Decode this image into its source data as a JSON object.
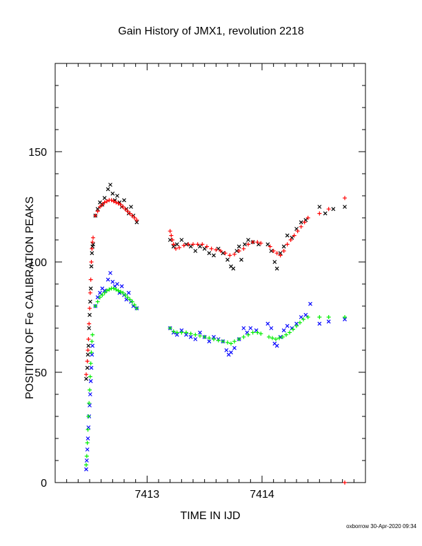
{
  "chart_data": {
    "type": "scatter",
    "title": "Gain History of JMX1, revolution 2218",
    "xlabel": "TIME IN IJD",
    "ylabel": "POSITION OF Fe CALIBRATION PEAKS",
    "footer": "oxborrow 30-Apr-2020 09:34",
    "xlim": [
      7412.2,
      7414.9
    ],
    "ylim": [
      0,
      190
    ],
    "x_ticks": [
      7413,
      7414
    ],
    "y_ticks": [
      0,
      50,
      100,
      150
    ],
    "grid": false,
    "series": [
      {
        "marker": "x",
        "color": "#000000",
        "points": [
          [
            7412.47,
            47
          ],
          [
            7412.48,
            52
          ],
          [
            7412.485,
            58
          ],
          [
            7412.49,
            62
          ],
          [
            7412.495,
            70
          ],
          [
            7412.5,
            76
          ],
          [
            7412.505,
            82
          ],
          [
            7412.51,
            88
          ],
          [
            7412.515,
            98
          ],
          [
            7412.52,
            104
          ],
          [
            7412.525,
            107
          ],
          [
            7412.53,
            108
          ],
          [
            7412.55,
            121
          ],
          [
            7412.57,
            124
          ],
          [
            7412.59,
            127
          ],
          [
            7412.61,
            126
          ],
          [
            7412.63,
            129
          ],
          [
            7412.66,
            133
          ],
          [
            7412.68,
            135
          ],
          [
            7412.7,
            131
          ],
          [
            7412.72,
            128
          ],
          [
            7412.74,
            130
          ],
          [
            7412.76,
            127
          ],
          [
            7412.78,
            125
          ],
          [
            7412.8,
            128
          ],
          [
            7412.82,
            124
          ],
          [
            7412.84,
            122
          ],
          [
            7412.86,
            125
          ],
          [
            7412.88,
            121
          ],
          [
            7412.91,
            118
          ],
          [
            7413.2,
            110
          ],
          [
            7413.23,
            107
          ],
          [
            7413.26,
            108
          ],
          [
            7413.3,
            110
          ],
          [
            7413.34,
            108
          ],
          [
            7413.38,
            107
          ],
          [
            7413.42,
            105
          ],
          [
            7413.46,
            107
          ],
          [
            7413.5,
            106
          ],
          [
            7413.54,
            104
          ],
          [
            7413.58,
            103
          ],
          [
            7413.62,
            106
          ],
          [
            7413.66,
            104
          ],
          [
            7413.7,
            101
          ],
          [
            7413.73,
            98
          ],
          [
            7413.75,
            97
          ],
          [
            7413.78,
            105
          ],
          [
            7413.8,
            107
          ],
          [
            7413.82,
            101
          ],
          [
            7413.85,
            108
          ],
          [
            7413.88,
            110
          ],
          [
            7413.92,
            109
          ],
          [
            7413.97,
            108
          ],
          [
            7414.05,
            108
          ],
          [
            7414.08,
            105
          ],
          [
            7414.11,
            100
          ],
          [
            7414.13,
            97
          ],
          [
            7414.16,
            104
          ],
          [
            7414.19,
            107
          ],
          [
            7414.22,
            112
          ],
          [
            7414.26,
            111
          ],
          [
            7414.3,
            115
          ],
          [
            7414.34,
            118
          ],
          [
            7414.38,
            119
          ],
          [
            7414.5,
            125
          ],
          [
            7414.55,
            122
          ],
          [
            7414.62,
            124
          ],
          [
            7414.72,
            125
          ]
        ]
      },
      {
        "marker": "+",
        "color": "#ff0000",
        "points": [
          [
            7412.47,
            49
          ],
          [
            7412.48,
            55
          ],
          [
            7412.485,
            60
          ],
          [
            7412.49,
            65
          ],
          [
            7412.495,
            72
          ],
          [
            7412.5,
            79
          ],
          [
            7412.505,
            86
          ],
          [
            7412.51,
            92
          ],
          [
            7412.515,
            100
          ],
          [
            7412.52,
            106
          ],
          [
            7412.525,
            109
          ],
          [
            7412.53,
            111
          ],
          [
            7412.55,
            121
          ],
          [
            7412.57,
            123
          ],
          [
            7412.59,
            125
          ],
          [
            7412.61,
            126
          ],
          [
            7412.63,
            127
          ],
          [
            7412.65,
            127.5
          ],
          [
            7412.67,
            128
          ],
          [
            7412.69,
            128
          ],
          [
            7412.71,
            127.5
          ],
          [
            7412.73,
            127
          ],
          [
            7412.75,
            126.5
          ],
          [
            7412.77,
            126
          ],
          [
            7412.79,
            125
          ],
          [
            7412.81,
            124
          ],
          [
            7412.83,
            123
          ],
          [
            7412.85,
            122
          ],
          [
            7412.87,
            121
          ],
          [
            7412.89,
            120
          ],
          [
            7412.91,
            119
          ],
          [
            7413.2,
            114
          ],
          [
            7413.21,
            112
          ],
          [
            7413.22,
            110
          ],
          [
            7413.23,
            108
          ],
          [
            7413.25,
            106
          ],
          [
            7413.28,
            106.5
          ],
          [
            7413.32,
            107.5
          ],
          [
            7413.36,
            108
          ],
          [
            7413.4,
            108
          ],
          [
            7413.44,
            108
          ],
          [
            7413.48,
            108
          ],
          [
            7413.52,
            107
          ],
          [
            7413.56,
            106
          ],
          [
            7413.6,
            105.5
          ],
          [
            7413.64,
            105
          ],
          [
            7413.68,
            104
          ],
          [
            7413.72,
            103
          ],
          [
            7413.76,
            103.5
          ],
          [
            7413.8,
            105
          ],
          [
            7413.84,
            106
          ],
          [
            7413.88,
            108
          ],
          [
            7413.92,
            109
          ],
          [
            7413.96,
            109
          ],
          [
            7413.99,
            108.5
          ],
          [
            7414.07,
            107
          ],
          [
            7414.1,
            105
          ],
          [
            7414.13,
            104
          ],
          [
            7414.16,
            103
          ],
          [
            7414.19,
            105
          ],
          [
            7414.22,
            108
          ],
          [
            7414.25,
            110
          ],
          [
            7414.28,
            112
          ],
          [
            7414.31,
            114
          ],
          [
            7414.34,
            116
          ],
          [
            7414.37,
            118
          ],
          [
            7414.4,
            120
          ],
          [
            7414.5,
            122
          ],
          [
            7414.58,
            124
          ],
          [
            7414.72,
            129
          ],
          [
            7414.72,
            0
          ]
        ]
      },
      {
        "marker": "x",
        "color": "#0000ff",
        "points": [
          [
            7412.47,
            6
          ],
          [
            7412.475,
            10
          ],
          [
            7412.48,
            15
          ],
          [
            7412.485,
            20
          ],
          [
            7412.49,
            25
          ],
          [
            7412.495,
            30
          ],
          [
            7412.5,
            35
          ],
          [
            7412.505,
            40
          ],
          [
            7412.51,
            46
          ],
          [
            7412.515,
            52
          ],
          [
            7412.52,
            58
          ],
          [
            7412.525,
            62
          ],
          [
            7412.55,
            80
          ],
          [
            7412.57,
            84
          ],
          [
            7412.59,
            86
          ],
          [
            7412.61,
            88
          ],
          [
            7412.63,
            87
          ],
          [
            7412.66,
            92
          ],
          [
            7412.68,
            95
          ],
          [
            7412.7,
            91
          ],
          [
            7412.72,
            89
          ],
          [
            7412.74,
            90
          ],
          [
            7412.76,
            86
          ],
          [
            7412.78,
            89
          ],
          [
            7412.8,
            85
          ],
          [
            7412.82,
            83
          ],
          [
            7412.84,
            86
          ],
          [
            7412.86,
            82
          ],
          [
            7412.88,
            80
          ],
          [
            7412.91,
            79
          ],
          [
            7413.2,
            70
          ],
          [
            7413.23,
            68
          ],
          [
            7413.26,
            67
          ],
          [
            7413.3,
            69
          ],
          [
            7413.34,
            67
          ],
          [
            7413.38,
            66
          ],
          [
            7413.42,
            65
          ],
          [
            7413.46,
            68
          ],
          [
            7413.5,
            66
          ],
          [
            7413.54,
            64
          ],
          [
            7413.58,
            66
          ],
          [
            7413.62,
            65
          ],
          [
            7413.66,
            64
          ],
          [
            7413.69,
            60
          ],
          [
            7413.71,
            58
          ],
          [
            7413.73,
            59
          ],
          [
            7413.76,
            61
          ],
          [
            7413.8,
            65
          ],
          [
            7413.84,
            70
          ],
          [
            7413.87,
            68
          ],
          [
            7413.9,
            70
          ],
          [
            7413.95,
            69
          ],
          [
            7414.05,
            72
          ],
          [
            7414.08,
            70
          ],
          [
            7414.11,
            63
          ],
          [
            7414.13,
            62
          ],
          [
            7414.16,
            66
          ],
          [
            7414.19,
            69
          ],
          [
            7414.22,
            71
          ],
          [
            7414.26,
            70
          ],
          [
            7414.3,
            72
          ],
          [
            7414.34,
            75
          ],
          [
            7414.38,
            76
          ],
          [
            7414.42,
            81
          ],
          [
            7414.5,
            72
          ],
          [
            7414.58,
            73
          ],
          [
            7414.72,
            74
          ]
        ]
      },
      {
        "marker": "+",
        "color": "#00ee00",
        "points": [
          [
            7412.47,
            8
          ],
          [
            7412.475,
            12
          ],
          [
            7412.48,
            18
          ],
          [
            7412.485,
            24
          ],
          [
            7412.49,
            30
          ],
          [
            7412.495,
            36
          ],
          [
            7412.5,
            42
          ],
          [
            7412.505,
            48
          ],
          [
            7412.51,
            54
          ],
          [
            7412.515,
            59
          ],
          [
            7412.52,
            64
          ],
          [
            7412.525,
            67
          ],
          [
            7412.55,
            80
          ],
          [
            7412.57,
            82
          ],
          [
            7412.59,
            84
          ],
          [
            7412.61,
            85
          ],
          [
            7412.63,
            86
          ],
          [
            7412.65,
            87
          ],
          [
            7412.67,
            87.5
          ],
          [
            7412.69,
            88
          ],
          [
            7412.71,
            88
          ],
          [
            7412.73,
            87.5
          ],
          [
            7412.75,
            87
          ],
          [
            7412.77,
            86.5
          ],
          [
            7412.79,
            86
          ],
          [
            7412.81,
            85
          ],
          [
            7412.83,
            84
          ],
          [
            7412.85,
            83
          ],
          [
            7412.87,
            82
          ],
          [
            7412.89,
            80.5
          ],
          [
            7412.91,
            79
          ],
          [
            7413.2,
            70
          ],
          [
            7413.23,
            68.5
          ],
          [
            7413.26,
            68
          ],
          [
            7413.3,
            68
          ],
          [
            7413.34,
            68
          ],
          [
            7413.38,
            67.5
          ],
          [
            7413.42,
            67
          ],
          [
            7413.46,
            66.5
          ],
          [
            7413.5,
            66
          ],
          [
            7413.54,
            65.5
          ],
          [
            7413.58,
            65
          ],
          [
            7413.62,
            64.5
          ],
          [
            7413.66,
            64
          ],
          [
            7413.7,
            63.5
          ],
          [
            7413.73,
            63
          ],
          [
            7413.76,
            64
          ],
          [
            7413.8,
            65
          ],
          [
            7413.84,
            66
          ],
          [
            7413.88,
            67
          ],
          [
            7413.92,
            68
          ],
          [
            7413.96,
            68
          ],
          [
            7413.99,
            67.5
          ],
          [
            7414.06,
            66
          ],
          [
            7414.09,
            65.5
          ],
          [
            7414.12,
            65
          ],
          [
            7414.15,
            65.5
          ],
          [
            7414.18,
            66
          ],
          [
            7414.21,
            67
          ],
          [
            7414.24,
            68
          ],
          [
            7414.27,
            69.5
          ],
          [
            7414.3,
            71
          ],
          [
            7414.33,
            72.5
          ],
          [
            7414.36,
            74
          ],
          [
            7414.4,
            75
          ],
          [
            7414.5,
            75
          ],
          [
            7414.58,
            75
          ],
          [
            7414.72,
            75
          ]
        ]
      }
    ]
  }
}
